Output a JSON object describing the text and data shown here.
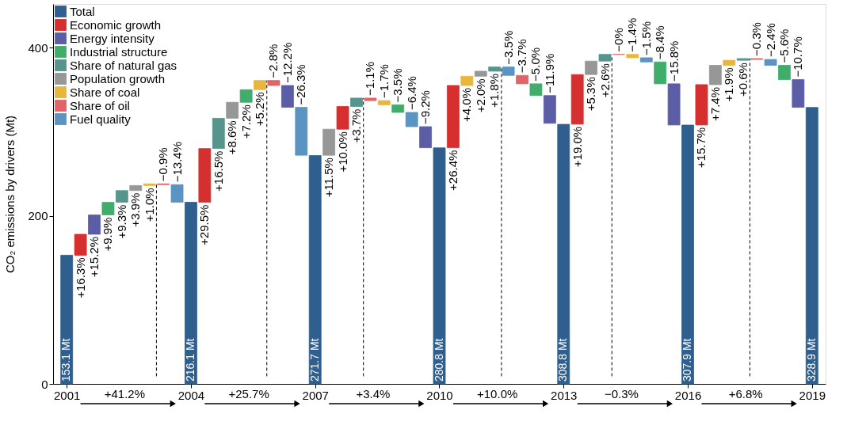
{
  "chart_data": {
    "type": "bar",
    "ylabel": "CO₂ emissions by drivers (Mt)",
    "categories": [
      "2001",
      null,
      null,
      null,
      null,
      null,
      null,
      null,
      null,
      "2004",
      null,
      null,
      null,
      null,
      null,
      null,
      null,
      null,
      "2007",
      null,
      null,
      null,
      null,
      null,
      null,
      null,
      null,
      "2010",
      null,
      null,
      null,
      null,
      null,
      null,
      null,
      null,
      "2013",
      null,
      null,
      null,
      null,
      null,
      null,
      null,
      null,
      "2016",
      null,
      null,
      null,
      null,
      null,
      null,
      null,
      null,
      "2019"
    ],
    "ylim": [
      0,
      452
    ],
    "yticks": [
      0,
      200,
      400
    ],
    "grid": false,
    "legend": "top left",
    "value_labels": [
      "153.1 Mt",
      "+16.3%",
      "+15.2%",
      "+9.9%",
      "+9.3%",
      "+3.9%",
      "+1.0%",
      "−0.9%",
      "−13.4%",
      "216.1 Mt",
      "+29.5%",
      "+16.5%",
      "+8.6%",
      "+7.2%",
      "+5.2%",
      "−2.8%",
      "−12.2%",
      "−26.3%",
      "271.7 Mt",
      "+11.5%",
      "+10.0%",
      "+3.7%",
      "−1.1%",
      "−1.7%",
      "−3.5%",
      "−6.4%",
      "−9.2%",
      "280.8 Mt",
      "+26.4%",
      "+4.0%",
      "+2.0%",
      "+1.8%",
      "−3.5%",
      "−3.7%",
      "−5.0%",
      "−11.9%",
      "308.8 Mt",
      "+19.0%",
      "+5.3%",
      "+2.6%",
      "−0%",
      "−1.4%",
      "−1.5%",
      "−8.4%",
      "−15.8%",
      "307.9 Mt",
      "+15.7%",
      "+7.4%",
      "+1.9%",
      "+0.6%",
      "−0.3%",
      "−2.4%",
      "−5.6%",
      "−10.7%",
      "328.9 Mt"
    ],
    "series": [
      {
        "name": "Total",
        "color": "#2f5f8e",
        "values": [
          153.1,
          null,
          null,
          null,
          null,
          null,
          null,
          null,
          null,
          216.1,
          null,
          null,
          null,
          null,
          null,
          null,
          null,
          null,
          271.7,
          null,
          null,
          null,
          null,
          null,
          null,
          null,
          null,
          280.8,
          null,
          null,
          null,
          null,
          null,
          null,
          null,
          null,
          308.8,
          null,
          null,
          null,
          null,
          null,
          null,
          null,
          null,
          307.9,
          null,
          null,
          null,
          null,
          null,
          null,
          null,
          null,
          328.9
        ]
      },
      {
        "name": "Economic growth",
        "color": "#d62f2f",
        "values": [
          null,
          25,
          null,
          null,
          null,
          null,
          null,
          null,
          null,
          null,
          64,
          null,
          null,
          null,
          null,
          null,
          null,
          null,
          null,
          null,
          27,
          null,
          null,
          null,
          null,
          null,
          null,
          null,
          74,
          null,
          null,
          null,
          null,
          null,
          null,
          null,
          null,
          59,
          null,
          null,
          null,
          null,
          null,
          null,
          null,
          null,
          48,
          null,
          null,
          null,
          null,
          null,
          null,
          null,
          null
        ],
        "base": [
          null,
          153,
          null,
          null,
          null,
          null,
          null,
          null,
          null,
          null,
          216,
          null,
          null,
          null,
          null,
          null,
          null,
          null,
          null,
          null,
          303,
          null,
          null,
          null,
          null,
          null,
          null,
          null,
          281,
          null,
          null,
          null,
          null,
          null,
          null,
          null,
          null,
          309,
          null,
          null,
          null,
          null,
          null,
          null,
          null,
          null,
          308,
          null,
          null,
          null,
          null,
          null,
          null,
          null,
          null
        ]
      },
      {
        "name": "Energy intensity",
        "color": "#5b5ea6",
        "values": [
          null,
          null,
          23,
          null,
          null,
          null,
          null,
          null,
          null,
          null,
          null,
          null,
          null,
          null,
          null,
          null,
          -26,
          null,
          null,
          null,
          null,
          null,
          null,
          null,
          null,
          null,
          -25,
          null,
          null,
          null,
          null,
          null,
          null,
          null,
          null,
          -33,
          null,
          null,
          null,
          null,
          null,
          null,
          null,
          null,
          -49,
          null,
          null,
          null,
          null,
          null,
          null,
          null,
          null,
          -33,
          null
        ],
        "base": [
          null,
          null,
          178,
          null,
          null,
          null,
          null,
          null,
          null,
          null,
          null,
          null,
          null,
          null,
          null,
          null,
          355,
          null,
          null,
          null,
          null,
          null,
          null,
          null,
          null,
          null,
          306,
          null,
          null,
          null,
          null,
          null,
          null,
          null,
          null,
          343,
          null,
          null,
          null,
          null,
          null,
          null,
          null,
          null,
          357,
          null,
          null,
          null,
          null,
          null,
          null,
          null,
          null,
          362,
          null
        ]
      },
      {
        "name": "Industrial structure",
        "color": "#41ad6b",
        "values": [
          null,
          null,
          null,
          15,
          null,
          null,
          null,
          null,
          null,
          null,
          null,
          null,
          null,
          15,
          null,
          null,
          null,
          null,
          null,
          null,
          null,
          null,
          null,
          null,
          -9,
          null,
          null,
          null,
          null,
          null,
          null,
          null,
          null,
          null,
          -14,
          null,
          null,
          null,
          null,
          null,
          null,
          null,
          null,
          -26,
          null,
          null,
          null,
          null,
          null,
          null,
          null,
          null,
          -17,
          null,
          null
        ],
        "base": [
          null,
          null,
          null,
          201,
          null,
          null,
          null,
          null,
          null,
          null,
          null,
          null,
          null,
          335,
          null,
          null,
          null,
          null,
          null,
          null,
          null,
          null,
          null,
          null,
          332,
          null,
          null,
          null,
          null,
          null,
          null,
          null,
          null,
          null,
          357,
          null,
          null,
          null,
          null,
          null,
          null,
          null,
          null,
          383,
          null,
          null,
          null,
          null,
          null,
          null,
          null,
          null,
          379,
          null,
          null
        ]
      },
      {
        "name": "Share of natural gas",
        "color": "#55958e",
        "values": [
          null,
          null,
          null,
          null,
          14,
          null,
          null,
          null,
          null,
          null,
          null,
          36,
          null,
          null,
          null,
          null,
          null,
          null,
          null,
          null,
          null,
          10,
          null,
          null,
          null,
          null,
          null,
          null,
          null,
          null,
          null,
          5,
          null,
          null,
          null,
          null,
          null,
          null,
          null,
          8,
          null,
          null,
          null,
          null,
          null,
          null,
          null,
          null,
          null,
          2,
          null,
          null,
          null,
          null,
          null
        ],
        "base": [
          null,
          null,
          null,
          null,
          216,
          null,
          null,
          null,
          null,
          null,
          null,
          280,
          null,
          null,
          null,
          null,
          null,
          null,
          null,
          null,
          null,
          330,
          null,
          null,
          null,
          null,
          null,
          null,
          null,
          null,
          null,
          372,
          null,
          null,
          null,
          null,
          null,
          null,
          null,
          384,
          null,
          null,
          null,
          null,
          null,
          null,
          null,
          null,
          null,
          385,
          null,
          null,
          null,
          null,
          null
        ]
      },
      {
        "name": "Population growth",
        "color": "#979797",
        "values": [
          null,
          null,
          null,
          null,
          null,
          6,
          null,
          null,
          null,
          null,
          null,
          null,
          19,
          null,
          null,
          null,
          null,
          null,
          null,
          31,
          null,
          null,
          null,
          null,
          null,
          null,
          null,
          null,
          null,
          null,
          6,
          null,
          null,
          null,
          null,
          null,
          null,
          null,
          16,
          null,
          null,
          null,
          null,
          null,
          null,
          null,
          null,
          23,
          null,
          null,
          null,
          null,
          null,
          null,
          null
        ],
        "base": [
          null,
          null,
          null,
          null,
          null,
          230,
          null,
          null,
          null,
          null,
          null,
          null,
          316,
          null,
          null,
          null,
          null,
          null,
          null,
          272,
          null,
          null,
          null,
          null,
          null,
          null,
          null,
          null,
          null,
          null,
          366,
          null,
          null,
          null,
          null,
          null,
          null,
          null,
          368,
          null,
          null,
          null,
          null,
          null,
          null,
          null,
          null,
          356,
          null,
          null,
          null,
          null,
          null,
          null,
          null
        ]
      },
      {
        "name": "Share of coal",
        "color": "#e9b63c",
        "values": [
          null,
          null,
          null,
          null,
          null,
          null,
          2,
          null,
          null,
          null,
          null,
          null,
          null,
          null,
          11,
          null,
          null,
          null,
          null,
          null,
          null,
          null,
          null,
          -5,
          null,
          null,
          null,
          null,
          null,
          11,
          null,
          null,
          null,
          null,
          null,
          null,
          null,
          null,
          null,
          null,
          null,
          -4,
          null,
          null,
          null,
          null,
          null,
          null,
          6,
          null,
          null,
          null,
          null,
          null,
          null
        ],
        "base": [
          null,
          null,
          null,
          null,
          null,
          null,
          236,
          null,
          null,
          null,
          null,
          null,
          null,
          null,
          350,
          null,
          null,
          null,
          null,
          null,
          null,
          null,
          null,
          337,
          null,
          null,
          null,
          null,
          null,
          355,
          null,
          null,
          null,
          null,
          null,
          null,
          null,
          null,
          null,
          null,
          null,
          392,
          null,
          null,
          null,
          null,
          null,
          null,
          379,
          null,
          null,
          null,
          null,
          null,
          null
        ]
      },
      {
        "name": "Share of oil",
        "color": "#e06468",
        "values": [
          null,
          null,
          null,
          null,
          null,
          null,
          null,
          -1,
          null,
          null,
          null,
          null,
          null,
          null,
          null,
          -6,
          null,
          null,
          null,
          null,
          null,
          null,
          -3,
          null,
          null,
          null,
          null,
          null,
          null,
          null,
          null,
          null,
          null,
          -10,
          null,
          null,
          null,
          null,
          null,
          null,
          0,
          null,
          null,
          null,
          null,
          null,
          null,
          null,
          null,
          null,
          -1,
          null,
          null,
          null,
          null
        ],
        "base": [
          null,
          null,
          null,
          null,
          null,
          null,
          null,
          238,
          null,
          null,
          null,
          null,
          null,
          null,
          null,
          361,
          null,
          null,
          null,
          null,
          null,
          null,
          340,
          null,
          null,
          null,
          null,
          null,
          null,
          null,
          null,
          null,
          null,
          367,
          null,
          null,
          null,
          null,
          null,
          null,
          392,
          null,
          null,
          null,
          null,
          null,
          null,
          null,
          null,
          null,
          387,
          null,
          null,
          null,
          null
        ]
      },
      {
        "name": "Fuel quality",
        "color": "#5b93c2",
        "values": [
          null,
          null,
          null,
          null,
          null,
          null,
          null,
          null,
          -21,
          null,
          null,
          null,
          null,
          null,
          null,
          null,
          null,
          -57,
          null,
          null,
          null,
          null,
          null,
          null,
          null,
          -17,
          null,
          null,
          null,
          null,
          null,
          null,
          -10,
          null,
          null,
          null,
          null,
          null,
          null,
          null,
          null,
          null,
          -5,
          null,
          null,
          null,
          null,
          null,
          null,
          null,
          null,
          -7,
          null,
          null,
          null
        ],
        "base": [
          null,
          null,
          null,
          null,
          null,
          null,
          null,
          null,
          237,
          null,
          null,
          null,
          null,
          null,
          null,
          null,
          null,
          329,
          null,
          null,
          null,
          null,
          null,
          null,
          null,
          323,
          null,
          null,
          null,
          null,
          null,
          null,
          377,
          null,
          null,
          null,
          null,
          null,
          null,
          null,
          null,
          null,
          388,
          null,
          null,
          null,
          null,
          null,
          null,
          null,
          null,
          386,
          null,
          null,
          null
        ]
      }
    ],
    "annotations": [
      "+41.2%",
      "+25.7%",
      "+3.4%",
      "+10.0%",
      "−0.3%",
      "+6.8%"
    ]
  }
}
